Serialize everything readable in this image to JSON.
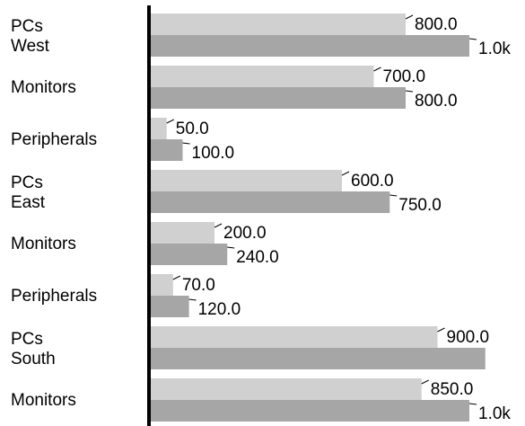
{
  "chart_data": {
    "type": "bar",
    "orientation": "horizontal",
    "grid": false,
    "legend": "none",
    "xlim": [
      0,
      1050
    ],
    "colors": {
      "series_a": "#d0d0d0",
      "series_b": "#a6a6a6",
      "axis": "#000000"
    },
    "categories": [
      {
        "label": "PCs",
        "group": "West"
      },
      {
        "label": "Monitors",
        "group": ""
      },
      {
        "label": "Peripherals",
        "group": ""
      },
      {
        "label": "PCs",
        "group": "East"
      },
      {
        "label": "Monitors",
        "group": ""
      },
      {
        "label": "Peripherals",
        "group": ""
      },
      {
        "label": "PCs",
        "group": "South"
      },
      {
        "label": "Monitors",
        "group": ""
      }
    ],
    "series": [
      {
        "values": [
          800,
          700,
          50,
          600,
          200,
          70,
          900,
          850
        ],
        "labels": [
          "800.0",
          "700.0",
          "50.0",
          "600.0",
          "200.0",
          "70.0",
          "900.0",
          "850.0"
        ]
      },
      {
        "values": [
          1000,
          800,
          100,
          750,
          240,
          120,
          1050,
          1000
        ],
        "labels": [
          "1.0k",
          "800.0",
          "100.0",
          "750.0",
          "240.0",
          "120.0",
          "",
          "1.0k"
        ]
      }
    ]
  }
}
